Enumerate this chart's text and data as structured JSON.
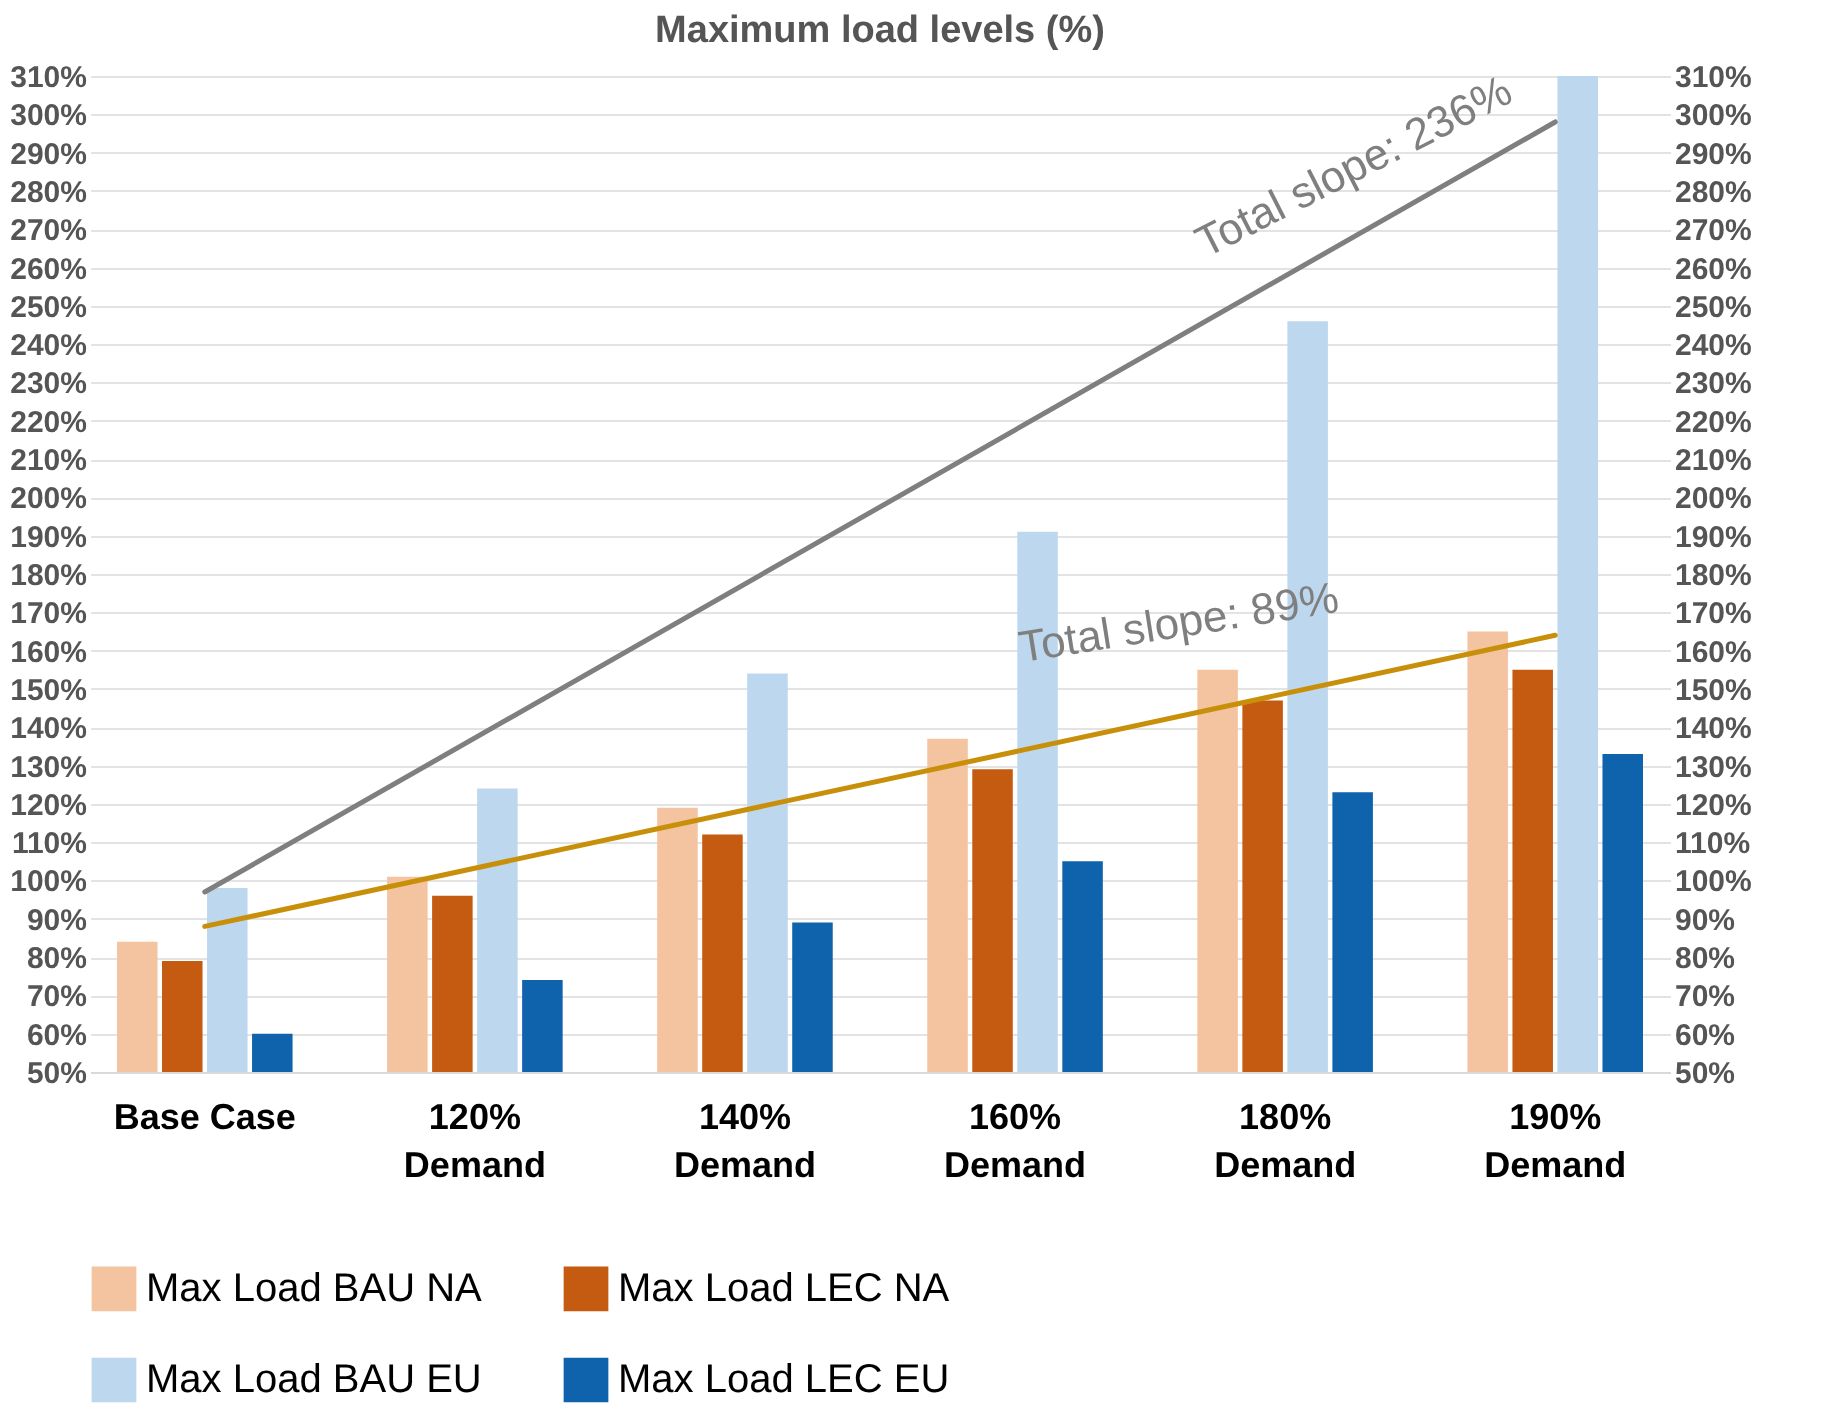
{
  "chart_data": {
    "type": "bar",
    "title": "Maximum load levels (%)",
    "categories": [
      "Base Case",
      "120%\nDemand",
      "140%\nDemand",
      "160%\nDemand",
      "180%\nDemand",
      "190%\nDemand"
    ],
    "series": [
      {
        "name": "Max Load BAU NA",
        "color": "#f4c3a0",
        "values": [
          84,
          101,
          119,
          137,
          155,
          165
        ]
      },
      {
        "name": "Max Load LEC NA",
        "color": "#c55a11",
        "values": [
          79,
          96,
          112,
          129,
          147,
          155
        ]
      },
      {
        "name": "Max Load BAU EU",
        "color": "#bdd7ee",
        "values": [
          98,
          124,
          154,
          191,
          246,
          310
        ]
      },
      {
        "name": "Max Load LEC EU",
        "color": "#0f62ac",
        "values": [
          60,
          74,
          89,
          105,
          123,
          133
        ]
      },
      {
        "type": "line",
        "color": "#7f7f7f",
        "x": [
          "Base Case",
          "190%\nDemand"
        ],
        "values": [
          97,
          298
        ]
      },
      {
        "type": "line",
        "color": "#c8900a",
        "x": [
          "Base Case",
          "190%\nDemand"
        ],
        "values": [
          88,
          164
        ]
      }
    ],
    "ylim": [
      50,
      310
    ],
    "yticks": [
      {
        "value": 50,
        "label": "50%"
      },
      {
        "value": 60,
        "label": "60%"
      },
      {
        "value": 70,
        "label": "70%"
      },
      {
        "value": 80,
        "label": "80%"
      },
      {
        "value": 90,
        "label": "90%"
      },
      {
        "value": 100,
        "label": "100%"
      },
      {
        "value": 110,
        "label": "110%"
      },
      {
        "value": 120,
        "label": "120%"
      },
      {
        "value": 130,
        "label": "130%"
      },
      {
        "value": 140,
        "label": "140%"
      },
      {
        "value": 150,
        "label": "150%"
      },
      {
        "value": 160,
        "label": "160%"
      },
      {
        "value": 170,
        "label": "170%"
      },
      {
        "value": 180,
        "label": "180%"
      },
      {
        "value": 190,
        "label": "190%"
      },
      {
        "value": 200,
        "label": "200%"
      },
      {
        "value": 210,
        "label": "210%"
      },
      {
        "value": 220,
        "label": "220%"
      },
      {
        "value": 230,
        "label": "230%"
      },
      {
        "value": 240,
        "label": "240%"
      },
      {
        "value": 250,
        "label": "250%"
      },
      {
        "value": 260,
        "label": "260%"
      },
      {
        "value": 270,
        "label": "270%"
      },
      {
        "value": 280,
        "label": "280%"
      },
      {
        "value": 290,
        "label": "290%"
      },
      {
        "value": 300,
        "label": "300%"
      },
      {
        "value": 310,
        "label": "310%"
      }
    ],
    "y2lim": [
      50,
      310
    ],
    "y2ticks": [
      {
        "value": 50,
        "label": "50%"
      },
      {
        "value": 60,
        "label": "60%"
      },
      {
        "value": 70,
        "label": "70%"
      },
      {
        "value": 80,
        "label": "80%"
      },
      {
        "value": 90,
        "label": "90%"
      },
      {
        "value": 100,
        "label": "100%"
      },
      {
        "value": 110,
        "label": "110%"
      },
      {
        "value": 120,
        "label": "120%"
      },
      {
        "value": 130,
        "label": "130%"
      },
      {
        "value": 140,
        "label": "140%"
      },
      {
        "value": 150,
        "label": "150%"
      },
      {
        "value": 160,
        "label": "160%"
      },
      {
        "value": 170,
        "label": "170%"
      },
      {
        "value": 180,
        "label": "180%"
      },
      {
        "value": 190,
        "label": "190%"
      },
      {
        "value": 200,
        "label": "200%"
      },
      {
        "value": 210,
        "label": "210%"
      },
      {
        "value": 220,
        "label": "220%"
      },
      {
        "value": 230,
        "label": "230%"
      },
      {
        "value": 240,
        "label": "240%"
      },
      {
        "value": 250,
        "label": "250%"
      },
      {
        "value": 260,
        "label": "260%"
      },
      {
        "value": 270,
        "label": "270%"
      },
      {
        "value": 280,
        "label": "280%"
      },
      {
        "value": 290,
        "label": "290%"
      },
      {
        "value": 300,
        "label": "300%"
      },
      {
        "value": 310,
        "label": "310%"
      }
    ],
    "annotations": [
      {
        "text": "Total slope: 236%",
        "x": "190%\nDemand",
        "y": 306
      },
      {
        "text": "Total slope: 89%",
        "x": "180%\nDemand",
        "y": 161
      }
    ],
    "grid": "y",
    "legend": "bottom"
  }
}
